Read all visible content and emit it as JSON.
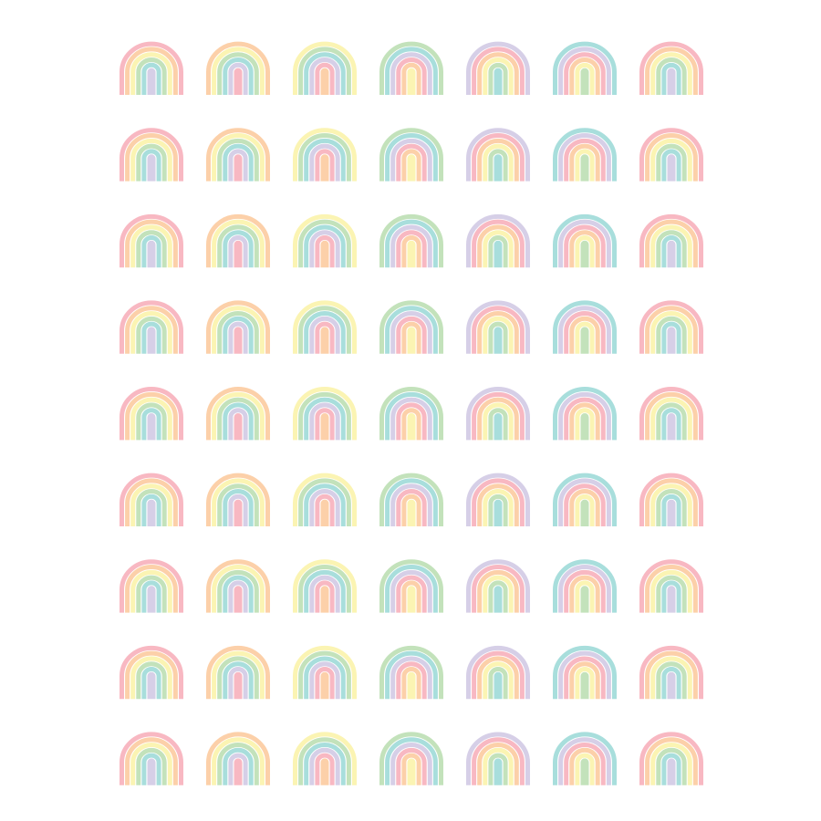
{
  "sheet": {
    "rows": 9,
    "columns": 7,
    "arcs_per_rainbow": 6,
    "palette": [
      {
        "name": "pink",
        "color": "#f8b8c2"
      },
      {
        "name": "orange",
        "color": "#fcd0a9"
      },
      {
        "name": "yellow",
        "color": "#fbf4b3"
      },
      {
        "name": "green",
        "color": "#c3e2bb"
      },
      {
        "name": "teal",
        "color": "#a8dedc"
      },
      {
        "name": "lavender",
        "color": "#d6cfe7"
      }
    ],
    "column_start_color_index": [
      0,
      1,
      2,
      3,
      5,
      4,
      0
    ]
  }
}
